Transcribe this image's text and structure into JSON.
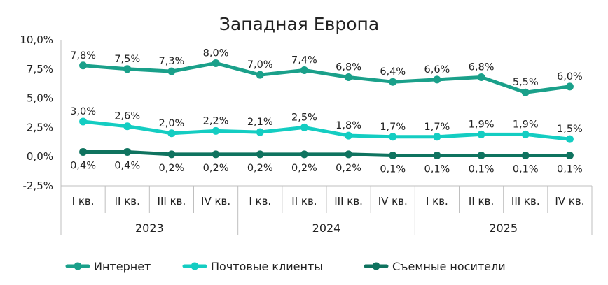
{
  "chart_data": {
    "type": "line",
    "title": "Западная Европа",
    "xlabel": "",
    "ylabel": "",
    "ylim": [
      -2.5,
      10.0
    ],
    "yticks": [
      "10,0%",
      "7,5%",
      "5,0%",
      "2,5%",
      "0,0%",
      "-2,5%"
    ],
    "ytick_values": [
      10.0,
      7.5,
      5.0,
      2.5,
      0.0,
      -2.5
    ],
    "categories": [
      "I кв.",
      "II кв.",
      "III кв.",
      "IV кв.",
      "I кв.",
      "II кв.",
      "III кв.",
      "IV кв.",
      "I кв.",
      "II кв.",
      "III кв.",
      "IV кв."
    ],
    "years": [
      {
        "label": "2023",
        "span": 4
      },
      {
        "label": "2024",
        "span": 4
      },
      {
        "label": "2025",
        "span": 4
      }
    ],
    "grid": false,
    "legend_position": "bottom",
    "series": [
      {
        "name": "Интернет",
        "color": "#1aa08a",
        "values": [
          7.8,
          7.5,
          7.3,
          8.0,
          7.0,
          7.4,
          6.8,
          6.4,
          6.6,
          6.8,
          5.5,
          6.0
        ],
        "labels": [
          "7,8%",
          "7,5%",
          "7,3%",
          "8,0%",
          "7,0%",
          "7,4%",
          "6,8%",
          "6,4%",
          "6,6%",
          "6,8%",
          "5,5%",
          "6,0%"
        ],
        "label_position": "above"
      },
      {
        "name": "Почтовые клиенты",
        "color": "#14cdc2",
        "values": [
          3.0,
          2.6,
          2.0,
          2.2,
          2.1,
          2.5,
          1.8,
          1.7,
          1.7,
          1.9,
          1.9,
          1.5
        ],
        "labels": [
          "3,0%",
          "2,6%",
          "2,0%",
          "2,2%",
          "2,1%",
          "2,5%",
          "1,8%",
          "1,7%",
          "1,7%",
          "1,9%",
          "1,9%",
          "1,5%"
        ],
        "label_position": "above"
      },
      {
        "name": "Съемные носители",
        "color": "#0f735f",
        "values": [
          0.4,
          0.4,
          0.2,
          0.2,
          0.2,
          0.2,
          0.2,
          0.1,
          0.1,
          0.1,
          0.1,
          0.1
        ],
        "labels": [
          "0,4%",
          "0,4%",
          "0,2%",
          "0,2%",
          "0,2%",
          "0,2%",
          "0,2%",
          "0,1%",
          "0,1%",
          "0,1%",
          "0,1%",
          "0,1%"
        ],
        "label_position": "below"
      }
    ]
  }
}
